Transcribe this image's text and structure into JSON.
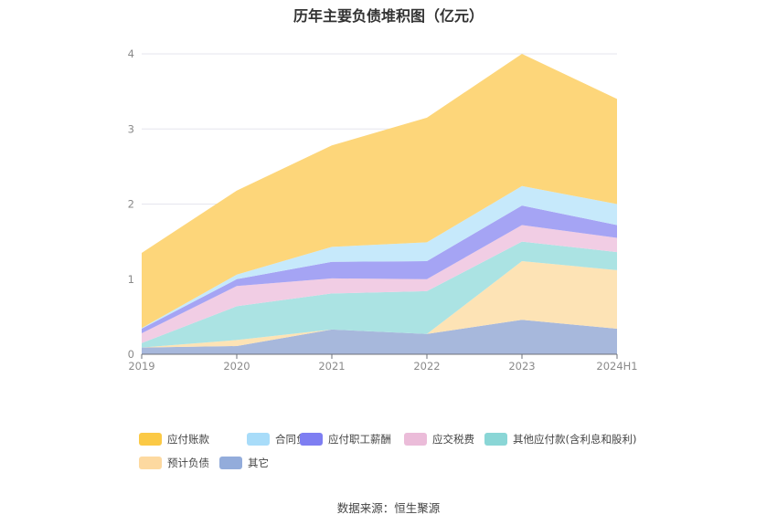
{
  "title": "历年主要负债堆积图（亿元）",
  "source": "数据来源：恒生聚源",
  "chart_data": {
    "type": "area",
    "stacked": true,
    "categories": [
      "2019",
      "2020",
      "2021",
      "2022",
      "2023",
      "2024H1"
    ],
    "ylim": [
      0,
      4
    ],
    "yticks": [
      "0",
      "1",
      "2",
      "3",
      "4"
    ],
    "grid": true,
    "legend_position": "bottom",
    "series": [
      {
        "name": "其它",
        "color": "#a7b8dc",
        "legend_color": "#93acdb",
        "values": [
          0.09,
          0.11,
          0.33,
          0.27,
          0.46,
          0.34
        ]
      },
      {
        "name": "预计负债",
        "color": "#fde3b5",
        "legend_color": "#fdd9a0",
        "values": [
          0.0,
          0.08,
          0.0,
          0.0,
          0.78,
          0.78
        ]
      },
      {
        "name": "其他应付款(含利息和股利)",
        "color": "#abe3e3",
        "legend_color": "#8ad6d6",
        "values": [
          0.06,
          0.45,
          0.48,
          0.57,
          0.26,
          0.24
        ]
      },
      {
        "name": "应交税费",
        "color": "#f1cde4",
        "legend_color": "#ebbcd9",
        "values": [
          0.13,
          0.27,
          0.2,
          0.16,
          0.22,
          0.19
        ]
      },
      {
        "name": "应付职工薪酬",
        "color": "#a5a4f4",
        "legend_color": "#7e7ef2",
        "values": [
          0.06,
          0.09,
          0.22,
          0.24,
          0.26,
          0.17
        ]
      },
      {
        "name": "合同负债",
        "color": "#c6e9fb",
        "legend_color": "#a8dcf9",
        "values": [
          0.01,
          0.06,
          0.2,
          0.25,
          0.26,
          0.28
        ]
      },
      {
        "name": "应付账款",
        "color": "#fdd67a",
        "legend_color": "#fbc945",
        "values": [
          1.0,
          1.12,
          1.35,
          1.66,
          1.76,
          1.4
        ]
      }
    ],
    "legend_order": [
      "应付账款",
      "合同负债",
      "应付职工薪酬",
      "应交税费",
      "其他应付款(含利息和股利)",
      "预计负债",
      "其它"
    ]
  }
}
